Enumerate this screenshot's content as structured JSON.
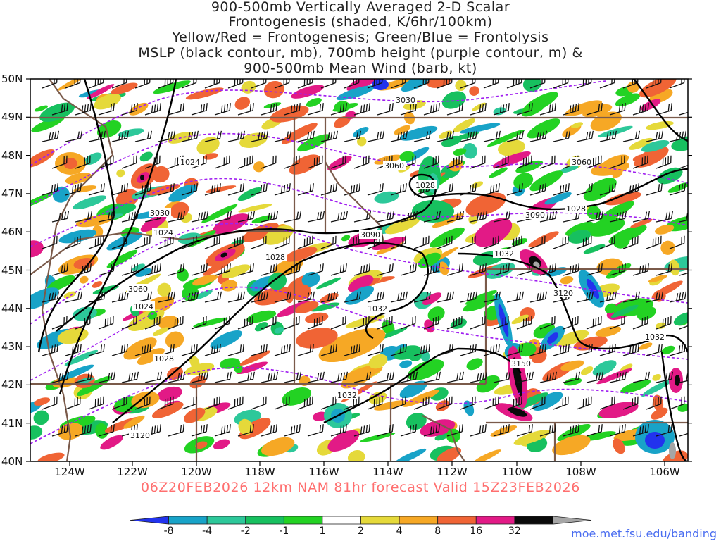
{
  "title": {
    "line1": "900-500mb Vertically Averaged 2-D Scalar",
    "line2": "Frontogenesis (shaded, K/6hr/100km)",
    "line3": "Yellow/Red = Frontogenesis;  Green/Blue = Frontolysis",
    "line4": "MSLP (black contour, mb), 700mb height (purple contour, m) &",
    "line5": "900-500mb Mean Wind (barb, kt)"
  },
  "latitudes": [
    "50N",
    "49N",
    "48N",
    "47N",
    "46N",
    "45N",
    "44N",
    "43N",
    "42N",
    "41N",
    "40N"
  ],
  "longitudes": [
    "124W",
    "122W",
    "120W",
    "118W",
    "116W",
    "114W",
    "112W",
    "110W",
    "108W",
    "106W"
  ],
  "model_line": "06Z20FEB2026 12km NAM 81hr forecast Valid 15Z23FEB2026",
  "colorbar": {
    "labels": [
      "-8",
      "-4",
      "-2",
      "-1",
      "1",
      "2",
      "4",
      "8",
      "16",
      "32"
    ],
    "colors": [
      "#2233ee",
      "#18a3c8",
      "#2dc89a",
      "#17c05f",
      "#23d223",
      "#ffffff",
      "#e5d93a",
      "#f6a825",
      "#f06435",
      "#e21a86",
      "#0a0a0a",
      "#a6a6a6"
    ]
  },
  "contour_labels": {
    "mslp": [
      "1024",
      "1024",
      "1024",
      "1028",
      "1028",
      "1028",
      "1028",
      "1032",
      "1032",
      "1032",
      "1032"
    ],
    "height": [
      "3030",
      "3030",
      "3060",
      "3060",
      "3060",
      "3090",
      "3090",
      "3120",
      "3120",
      "3150"
    ]
  },
  "credit": "moe.met.fsu.edu/banding",
  "colors": {
    "mslp_contour": "#000000",
    "height_contour": "#a020f0",
    "borders": "#7a5a4a",
    "barbs": "#111111",
    "model_line_text": "#ff6f6f",
    "credit_text": "#4a6df0"
  }
}
